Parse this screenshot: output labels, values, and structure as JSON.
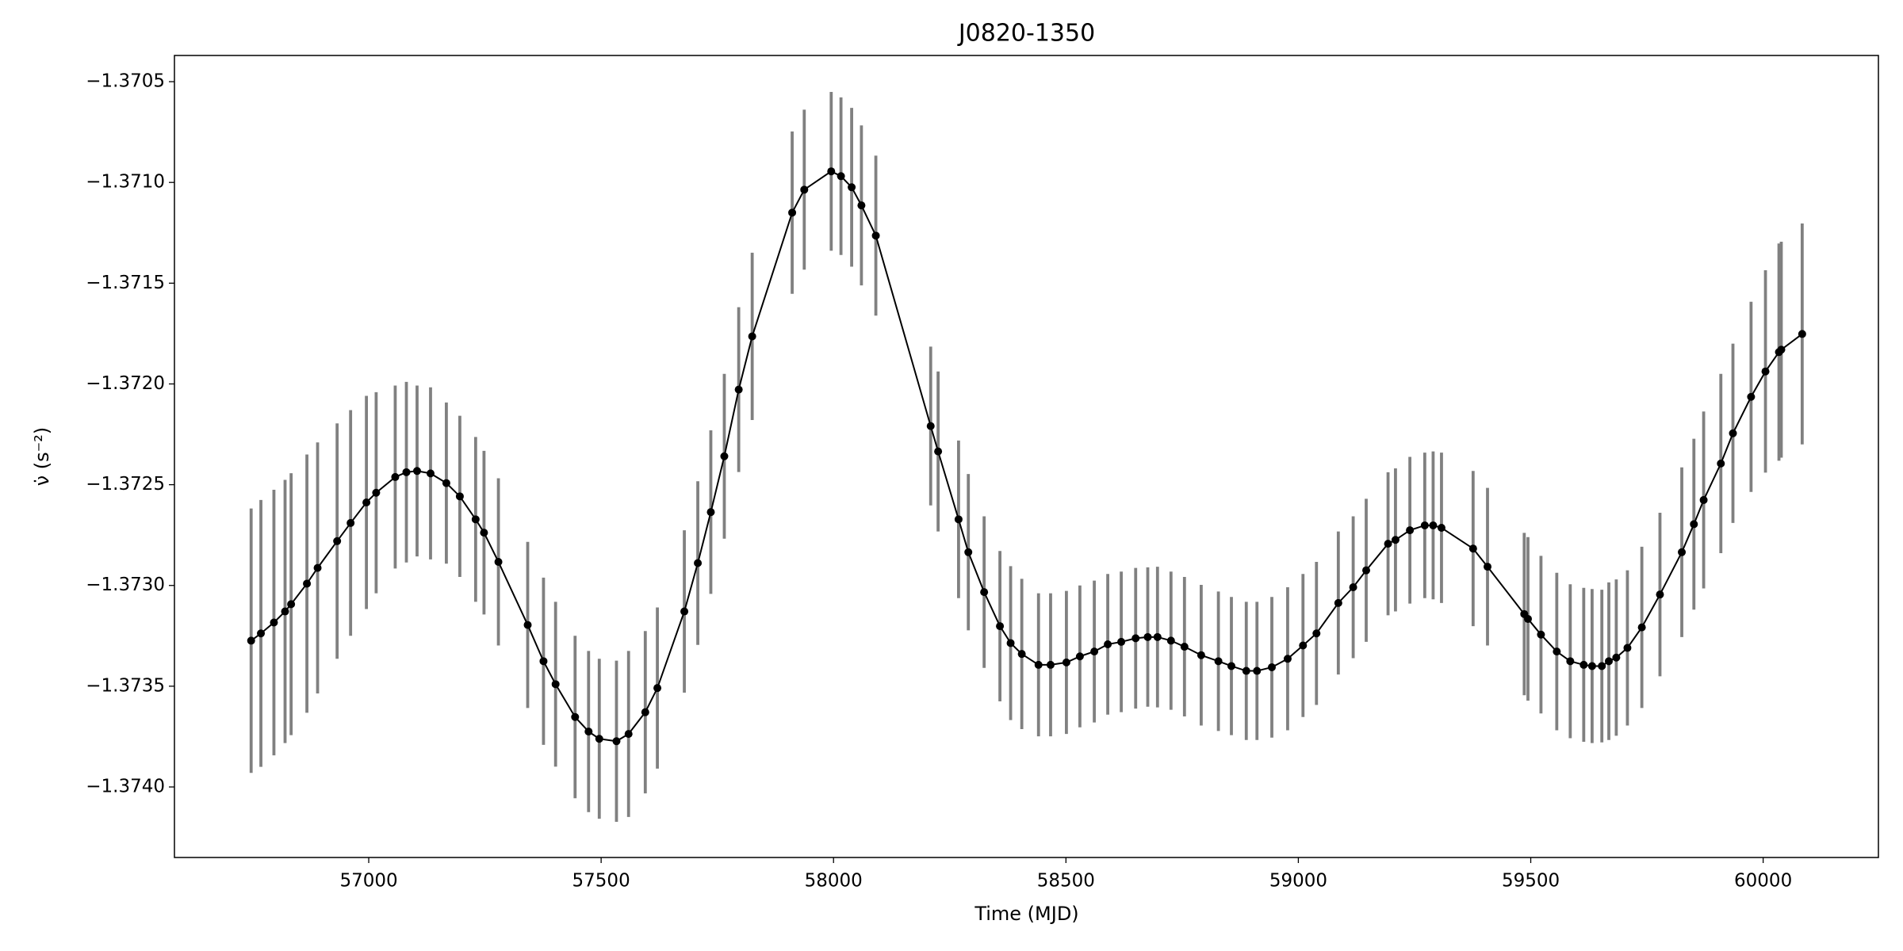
{
  "chart_data": {
    "type": "errorbar",
    "title": "J0820-1350",
    "x_label": "Time (MJD)",
    "y_label": "ν̇ (s⁻²)",
    "color": "#000000",
    "errorbar_color": "#808080",
    "grid": false,
    "xlim": [
      56582,
      60248
    ],
    "ylim": [
      -1.37435,
      -1.37037
    ],
    "xticks": [
      57000,
      57500,
      58000,
      58500,
      59000,
      59500,
      60000
    ],
    "yticks": [
      {
        "value": -1.3705,
        "label": "−1.3705"
      },
      {
        "value": -1.371,
        "label": "−1.3710"
      },
      {
        "value": -1.3715,
        "label": "−1.3715"
      },
      {
        "value": -1.372,
        "label": "−1.3720"
      },
      {
        "value": -1.3725,
        "label": "−1.3725"
      },
      {
        "value": -1.373,
        "label": "−1.3730"
      },
      {
        "value": -1.3735,
        "label": "−1.3735"
      },
      {
        "value": -1.374,
        "label": "−1.3740"
      }
    ],
    "x": [
      56747,
      56768,
      56796,
      56820,
      56833,
      56867,
      56890,
      56932,
      56961,
      56995,
      57016,
      57057,
      57081,
      57104,
      57133,
      57167,
      57196,
      57230,
      57248,
      57279,
      57342,
      57376,
      57402,
      57444,
      57473,
      57496,
      57533,
      57559,
      57595,
      57621,
      57679,
      57708,
      57736,
      57765,
      57796,
      57825,
      57911,
      57937,
      57995,
      58016,
      58039,
      58060,
      58091,
      58209,
      58225,
      58269,
      58290,
      58324,
      58358,
      58381,
      58405,
      58441,
      58467,
      58501,
      58530,
      58561,
      58590,
      58619,
      58650,
      58676,
      58697,
      58726,
      58755,
      58791,
      58828,
      58856,
      58888,
      58911,
      58943,
      58977,
      59010,
      59039,
      59086,
      59118,
      59146,
      59193,
      59209,
      59240,
      59272,
      59290,
      59308,
      59376,
      59407,
      59486,
      59494,
      59522,
      59556,
      59585,
      59614,
      59632,
      59653,
      59668,
      59684,
      59708,
      59739,
      59778,
      59825,
      59851,
      59872,
      59909,
      59935,
      59974,
      60005,
      60034,
      60039,
      60084
    ],
    "values": [
      -1.373274,
      -1.373238,
      -1.373184,
      -1.373129,
      -1.373093,
      -1.372991,
      -1.372913,
      -1.37278,
      -1.37269,
      -1.372588,
      -1.37254,
      -1.372462,
      -1.372438,
      -1.372432,
      -1.372444,
      -1.372492,
      -1.372558,
      -1.372672,
      -1.372738,
      -1.372883,
      -1.373196,
      -1.373376,
      -1.37349,
      -1.373653,
      -1.373725,
      -1.373761,
      -1.373773,
      -1.373737,
      -1.373629,
      -1.373509,
      -1.373129,
      -1.372889,
      -1.372636,
      -1.372359,
      -1.372028,
      -1.371764,
      -1.37115,
      -1.371036,
      -1.370945,
      -1.370969,
      -1.371024,
      -1.371114,
      -1.371264,
      -1.372209,
      -1.372335,
      -1.372672,
      -1.372835,
      -1.373033,
      -1.373202,
      -1.373286,
      -1.37334,
      -1.373394,
      -1.373394,
      -1.373382,
      -1.373352,
      -1.373328,
      -1.373292,
      -1.37328,
      -1.373262,
      -1.373256,
      -1.373256,
      -1.373274,
      -1.373304,
      -1.373346,
      -1.373376,
      -1.3734,
      -1.373424,
      -1.373424,
      -1.373406,
      -1.373364,
      -1.373298,
      -1.373238,
      -1.373087,
      -1.373009,
      -1.372925,
      -1.372793,
      -1.372774,
      -1.372726,
      -1.372702,
      -1.372702,
      -1.372714,
      -1.372817,
      -1.372907,
      -1.373142,
      -1.373166,
      -1.373244,
      -1.373328,
      -1.373376,
      -1.373394,
      -1.3734,
      -1.3734,
      -1.373376,
      -1.373358,
      -1.37331,
      -1.373208,
      -1.373045,
      -1.372835,
      -1.372696,
      -1.372576,
      -1.372395,
      -1.372245,
      -1.372064,
      -1.371938,
      -1.371842,
      -1.37183,
      -1.371752
    ],
    "errors": [
      0.000656,
      0.000662,
      0.000659,
      0.000653,
      0.00065,
      0.000641,
      0.000623,
      0.000584,
      0.00056,
      0.000529,
      0.000499,
      0.000454,
      0.000448,
      0.000424,
      0.000427,
      0.0004,
      0.0004,
      0.000409,
      0.000406,
      0.000415,
      0.000412,
      0.000415,
      0.000409,
      0.000403,
      0.0004,
      0.000397,
      0.0004,
      0.000412,
      0.000403,
      0.0004,
      0.000403,
      0.000406,
      0.000406,
      0.000409,
      0.000409,
      0.000415,
      0.000403,
      0.000397,
      0.000394,
      0.000391,
      0.000394,
      0.000397,
      0.000397,
      0.000394,
      0.000397,
      0.000391,
      0.000388,
      0.000376,
      0.000373,
      0.000382,
      0.000373,
      0.000355,
      0.000355,
      0.000355,
      0.000352,
      0.000352,
      0.000349,
      0.000349,
      0.000349,
      0.000346,
      0.000349,
      0.000343,
      0.000346,
      0.000349,
      0.000346,
      0.000343,
      0.000343,
      0.000343,
      0.000349,
      0.000355,
      0.000355,
      0.000355,
      0.000355,
      0.000352,
      0.000355,
      0.000355,
      0.000355,
      0.000364,
      0.000361,
      0.000367,
      0.000373,
      0.000385,
      0.000391,
      0.000403,
      0.000406,
      0.000391,
      0.000391,
      0.000382,
      0.000382,
      0.000382,
      0.000379,
      0.000391,
      0.000388,
      0.000385,
      0.0004,
      0.000406,
      0.000421,
      0.000424,
      0.000439,
      0.000445,
      0.000445,
      0.000472,
      0.000502,
      0.000539,
      0.000536,
      0.000548
    ]
  }
}
